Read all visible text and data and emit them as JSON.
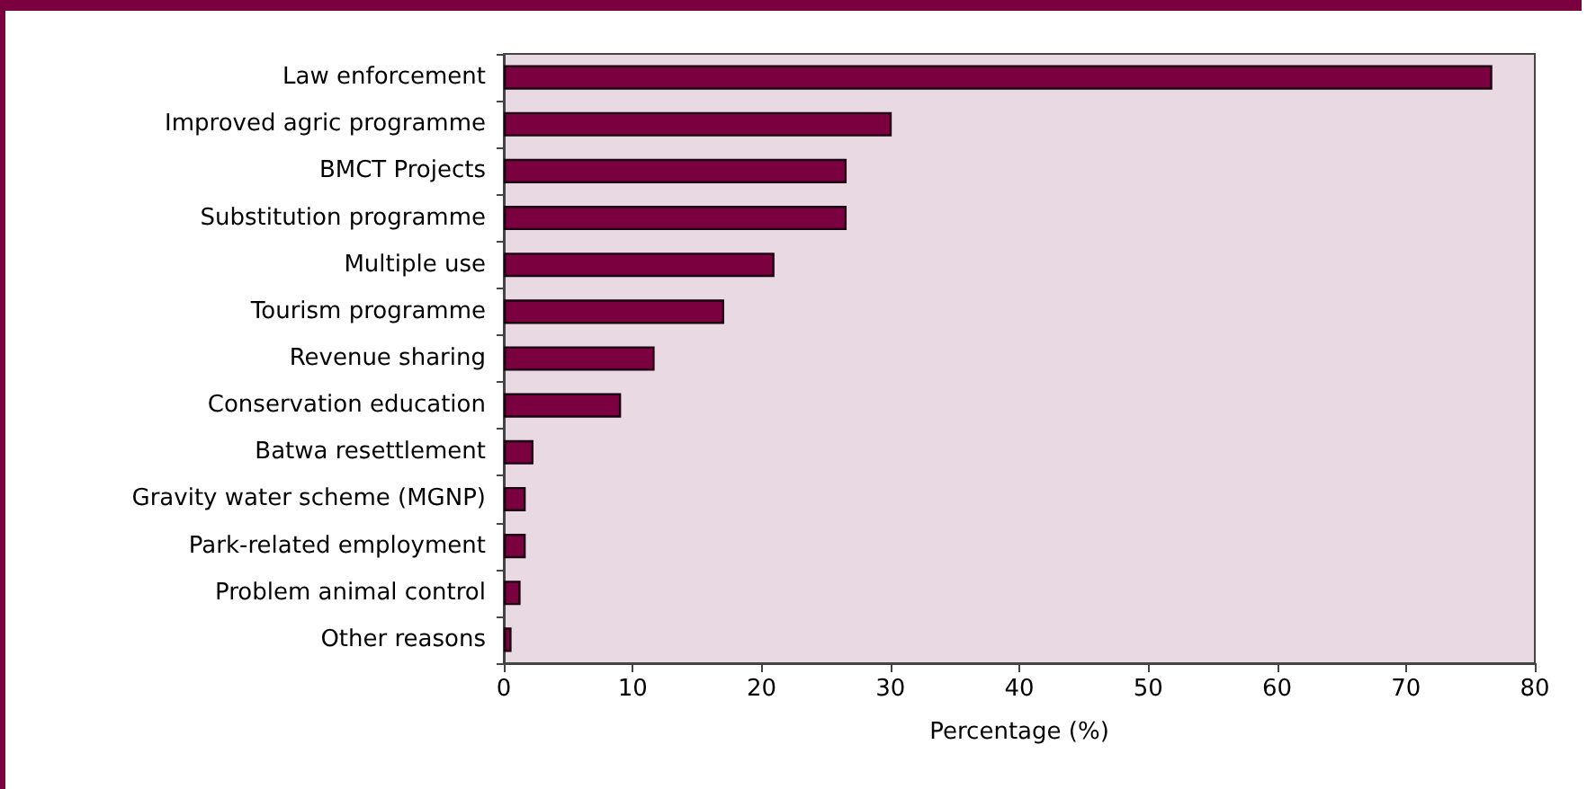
{
  "chart_data": {
    "type": "bar",
    "orientation": "horizontal",
    "xlabel": "Percentage (%)",
    "categories": [
      "Law enforcement",
      "Improved agric programme",
      "BMCT Projects",
      "Substitution programme",
      "Multiple use",
      "Tourism programme",
      "Revenue sharing",
      "Conservation education",
      "Batwa resettlement",
      "Gravity water scheme (MGNP)",
      "Park-related employment",
      "Problem animal control",
      "Other reasons"
    ],
    "values": [
      76.7,
      30.1,
      26.6,
      26.6,
      21.0,
      17.1,
      11.7,
      9.1,
      2.3,
      1.7,
      1.7,
      1.3,
      0.6
    ],
    "color": "#7a0040",
    "xlim": [
      0,
      80
    ],
    "xticks": [
      0,
      10,
      20,
      30,
      40,
      50,
      60,
      70,
      80
    ],
    "grid": false
  }
}
